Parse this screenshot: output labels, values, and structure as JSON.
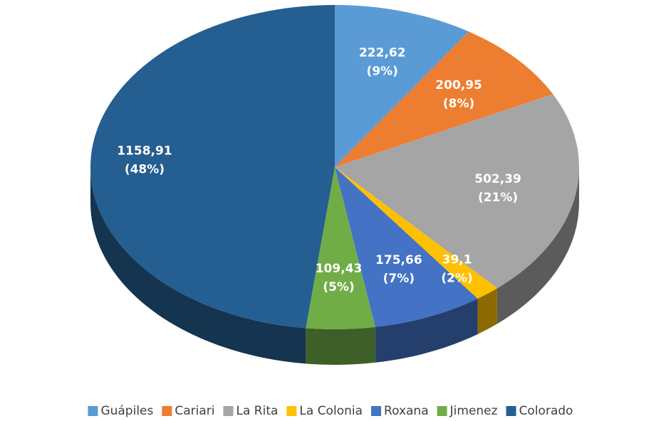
{
  "chart_data": {
    "type": "pie3d",
    "categories": [
      "Guápiles",
      "Cariari",
      "La Rita",
      "La Colonia",
      "Roxana",
      "Jimenez",
      "Colorado"
    ],
    "values": [
      222.62,
      200.95,
      502.39,
      39.1,
      175.66,
      109.43,
      1158.91
    ],
    "value_labels": [
      "222,62",
      "200,95",
      "502,39",
      "39,1",
      "175,66",
      "109,43",
      "1158,91"
    ],
    "percents": [
      9,
      8,
      21,
      2,
      7,
      5,
      48
    ],
    "percent_labels": [
      "(9%)",
      "(8%)",
      "(21%)",
      "(2%)",
      "(7%)",
      "(5%)",
      "(48%)"
    ],
    "colors": [
      "#5b9bd5",
      "#ed7d31",
      "#a5a5a5",
      "#ffc000",
      "#4472c4",
      "#70ad47",
      "#255e91"
    ],
    "legend": "bottom"
  }
}
